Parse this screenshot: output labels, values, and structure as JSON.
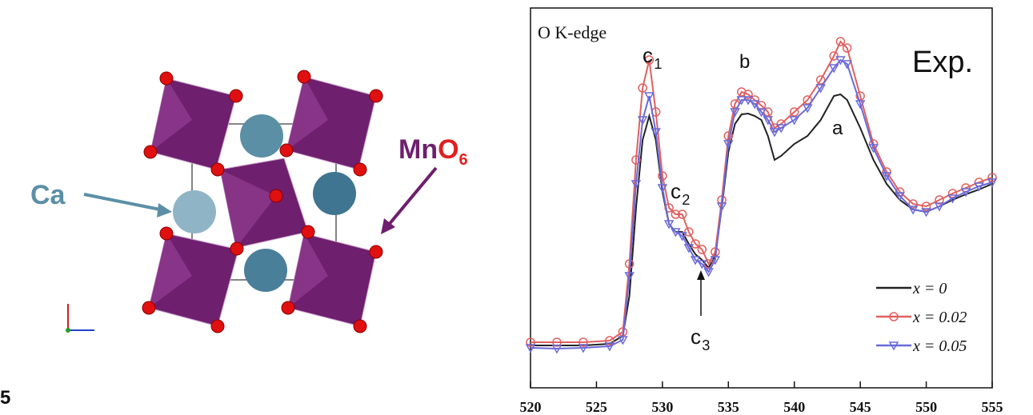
{
  "figure": {
    "label": "5"
  },
  "diagram": {
    "ca_label": "Ca",
    "mn_label": "Mn",
    "o_label": "O",
    "o_subscript": "6"
  },
  "chart_data": {
    "type": "line",
    "annotations": [
      {
        "text": "O K-edge"
      },
      {
        "text": "Exp."
      },
      {
        "text": "c",
        "sub": "1"
      },
      {
        "text": "c",
        "sub": "2"
      },
      {
        "text": "c",
        "sub": "3"
      },
      {
        "text": "b"
      },
      {
        "text": "a"
      }
    ],
    "x": [
      520,
      522,
      524,
      526,
      527,
      527.5,
      528,
      528.5,
      529,
      529.5,
      530,
      530.5,
      531,
      531.5,
      532,
      532.5,
      533,
      533.5,
      534,
      534.5,
      535,
      535.5,
      536,
      536.5,
      537,
      537.5,
      538,
      538.5,
      539,
      540,
      541,
      542,
      543,
      543.5,
      544,
      545,
      546,
      547,
      548,
      549,
      550,
      551,
      552,
      553,
      554,
      555
    ],
    "series": [
      {
        "name": "x = 0",
        "color": "#222222",
        "marker": "none",
        "values": [
          10.6,
          10.6,
          10.6,
          11,
          13,
          23,
          45,
          62,
          68,
          62,
          49,
          41,
          39,
          39,
          36,
          33.4,
          32,
          30,
          33,
          45,
          59,
          66,
          68.4,
          68.6,
          68,
          67,
          63,
          57,
          58,
          61,
          63,
          67,
          73,
          73.4,
          72,
          65,
          57,
          51,
          47,
          44.6,
          44,
          45.4,
          47,
          48.4,
          49.6,
          51
        ]
      },
      {
        "name": "x = 0.02",
        "color": "#e06060",
        "marker": "circle",
        "values": [
          11.4,
          11.4,
          11.4,
          11.8,
          14,
          31,
          57,
          75,
          82,
          69,
          53,
          45,
          43.4,
          43.4,
          39,
          36,
          34.6,
          31,
          34,
          47,
          63,
          71,
          74,
          73.4,
          72,
          70.6,
          69,
          65,
          66,
          69,
          72,
          77,
          83,
          86.6,
          85,
          73,
          61,
          54,
          49,
          46,
          45.4,
          47,
          48.6,
          50,
          51.4,
          52.6
        ]
      },
      {
        "name": "x = 0.05",
        "color": "#6a6ad8",
        "marker": "triangle",
        "values": [
          10,
          9.8,
          10,
          10.4,
          12,
          28,
          51,
          67,
          73,
          64,
          50,
          41,
          39,
          38,
          35,
          32,
          31,
          29,
          32,
          45.4,
          61,
          69,
          72,
          72,
          71,
          69,
          67,
          64,
          65,
          67,
          70,
          75,
          80,
          82,
          81,
          71,
          60,
          53,
          48,
          44.6,
          44,
          45.4,
          47.4,
          49,
          50.4,
          51.4
        ]
      }
    ],
    "xlim": [
      520,
      555
    ],
    "xticks": [
      520,
      525,
      530,
      535,
      540,
      545,
      550,
      555
    ],
    "ylim": [
      0,
      95
    ],
    "legend": "lower right"
  }
}
